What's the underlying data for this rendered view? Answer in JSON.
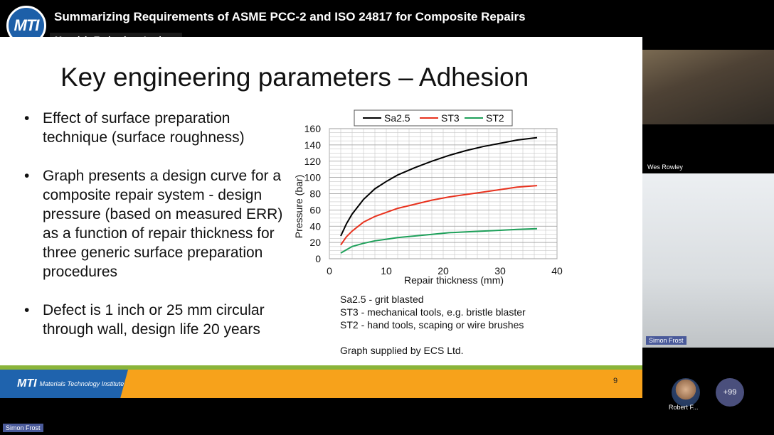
{
  "meeting": {
    "title": "Summarizing Requirements of ASME PCC-2 and ISO 24817 for Composite Repairs",
    "org": "Materials Technology Institute",
    "logo_text": "MTI"
  },
  "slide": {
    "title": "Key engineering parameters – Adhesion",
    "bullets": [
      "Effect of surface preparation technique (surface roughness)",
      "Graph presents a design curve for a composite repair system - design pressure (based on measured ERR) as a function of repair thickness for three generic surface preparation procedures",
      "Defect is 1 inch or 25 mm circular through wall, design life 20 years"
    ],
    "notes": [
      "Sa2.5 - grit blasted",
      "ST3 - mechanical tools, e.g. bristle blaster",
      "ST2 - hand tools, scaping or wire brushes"
    ],
    "credit": "Graph supplied by ECS Ltd.",
    "page_number": "9",
    "footer_org": "Materials Technology Institute",
    "footer_mark": "MTI"
  },
  "chart_data": {
    "type": "line",
    "xlabel": "Repair thickness (mm)",
    "ylabel": "Pressure (bar)",
    "xlim": [
      0,
      40
    ],
    "ylim": [
      0,
      160
    ],
    "xticks": [
      0,
      10,
      20,
      30,
      40
    ],
    "yticks": [
      0,
      20,
      40,
      60,
      80,
      100,
      120,
      140,
      160
    ],
    "grid": true,
    "legend": "top",
    "series": [
      {
        "name": "Sa2.5",
        "color": "#000000",
        "x": [
          2,
          3,
          4,
          6,
          8,
          10,
          12,
          15,
          18,
          21,
          24,
          27,
          30,
          33,
          36.5
        ],
        "y": [
          28,
          43,
          55,
          73,
          86,
          95,
          103,
          112,
          120,
          127,
          133,
          138,
          142,
          146,
          149
        ]
      },
      {
        "name": "ST3",
        "color": "#e8321e",
        "x": [
          2,
          3,
          4,
          6,
          8,
          10,
          12,
          15,
          18,
          21,
          24,
          27,
          30,
          33,
          36.5
        ],
        "y": [
          17,
          27,
          34,
          45,
          52,
          57,
          62,
          67,
          72,
          76,
          79,
          82,
          85,
          88,
          90
        ]
      },
      {
        "name": "ST2",
        "color": "#1ea05a",
        "x": [
          2,
          3,
          4,
          6,
          8,
          10,
          12,
          15,
          18,
          21,
          24,
          27,
          30,
          33,
          36.5
        ],
        "y": [
          7,
          11,
          15,
          19,
          22,
          24,
          26,
          28,
          30,
          32,
          33,
          34,
          35,
          36,
          37
        ]
      }
    ]
  },
  "participants": {
    "wes": "Wes Rowley",
    "simon": "Simon Frost",
    "robert": "Robert F...",
    "more": "+99"
  }
}
